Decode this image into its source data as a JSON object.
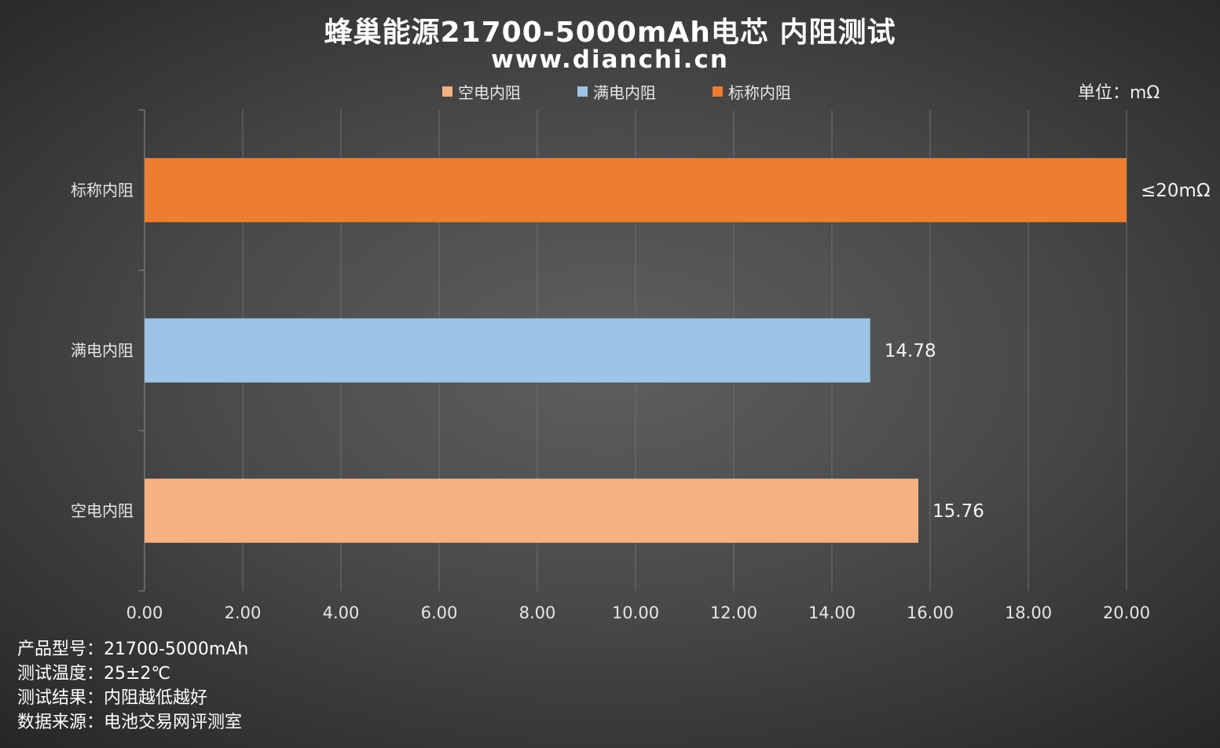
{
  "chart_data": {
    "type": "bar",
    "orientation": "horizontal",
    "title": "蜂巢能源21700-5000mAh电芯 内阻测试",
    "subtitle": "www.dianchi.cn",
    "unit_label": "单位：mΩ",
    "categories": [
      "标称内阻",
      "满电内阻",
      "空电内阻"
    ],
    "values": [
      20,
      14.78,
      15.76
    ],
    "data_labels": [
      "≤20mΩ",
      "14.78",
      "15.76"
    ],
    "colors": [
      "#ed7d31",
      "#9dc3e6",
      "#f4b183"
    ],
    "legend": [
      {
        "name": "空电内阻",
        "color": "#f4b183"
      },
      {
        "name": "满电内阻",
        "color": "#9dc3e6"
      },
      {
        "name": "标称内阻",
        "color": "#ed7d31"
      }
    ],
    "legend_position": "top",
    "xlim": [
      0,
      20
    ],
    "x_ticks": [
      "0.00",
      "2.00",
      "4.00",
      "6.00",
      "8.00",
      "10.00",
      "12.00",
      "14.00",
      "16.00",
      "18.00",
      "20.00"
    ],
    "grid": true
  },
  "notes": [
    "产品型号：21700-5000mAh",
    "测试温度：25±2℃",
    "测试结果：内阻越低越好",
    "数据来源：电池交易网评测室"
  ]
}
